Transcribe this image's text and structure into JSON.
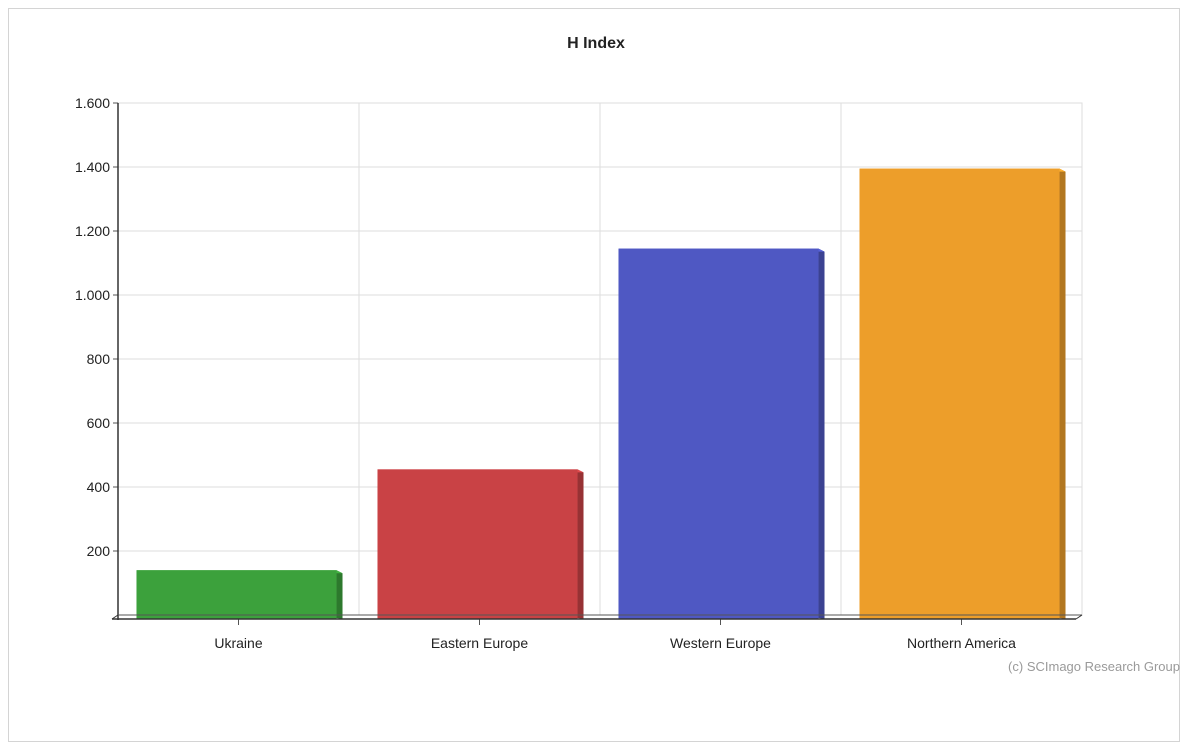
{
  "chart_data": {
    "type": "bar",
    "title": "H Index",
    "xlabel": "",
    "ylabel": "",
    "categories": [
      "Ukraine",
      "Eastern Europe",
      "Western Europe",
      "Northern America"
    ],
    "values": [
      140,
      455,
      1145,
      1395
    ],
    "colors": [
      "#3ca13c",
      "#c94245",
      "#4f58c3",
      "#ed9e2a"
    ],
    "ylim": [
      0,
      1600
    ],
    "y_ticks": [
      {
        "value": 200,
        "label": "200"
      },
      {
        "value": 400,
        "label": "400"
      },
      {
        "value": 600,
        "label": "600"
      },
      {
        "value": 800,
        "label": "800"
      },
      {
        "value": 1000,
        "label": "1.000"
      },
      {
        "value": 1200,
        "label": "1.200"
      },
      {
        "value": 1400,
        "label": "1.400"
      },
      {
        "value": 1600,
        "label": "1.600"
      }
    ],
    "grid": true,
    "legend": "none",
    "credit": "(c) SCImago Research Group"
  }
}
